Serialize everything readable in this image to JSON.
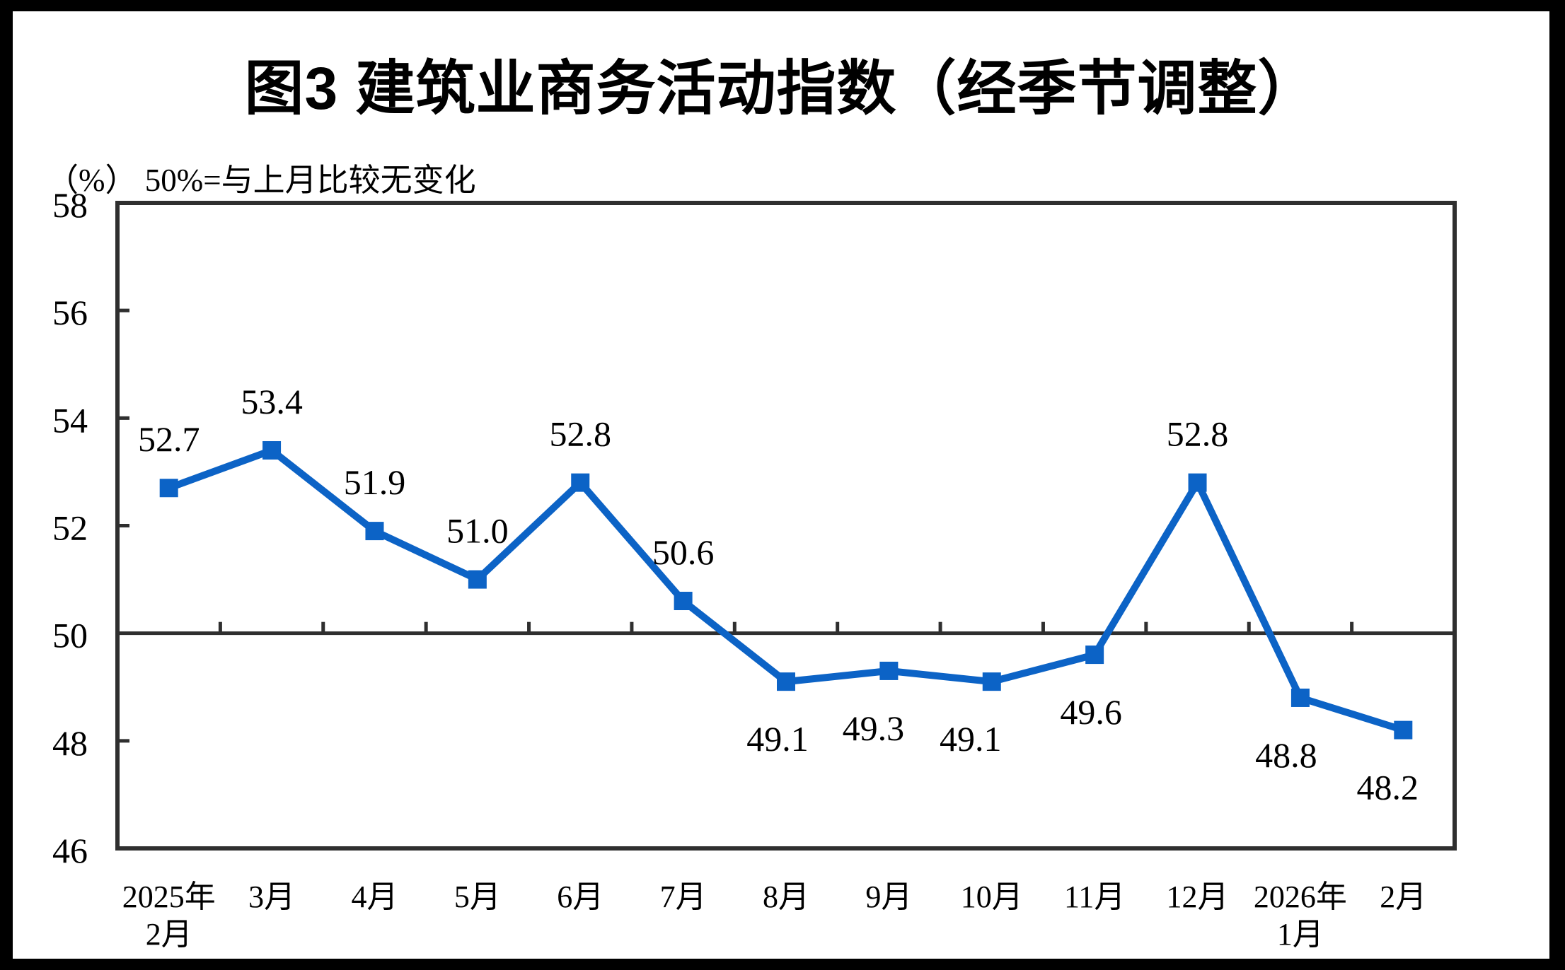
{
  "chart_data": {
    "type": "line",
    "title": "图3 建筑业商务活动指数（经季节调整）",
    "unit_note": "（%） 50%=与上月比较无变化",
    "categories": [
      [
        "2025年",
        "2月"
      ],
      [
        "3月"
      ],
      [
        "4月"
      ],
      [
        "5月"
      ],
      [
        "6月"
      ],
      [
        "7月"
      ],
      [
        "8月"
      ],
      [
        "9月"
      ],
      [
        "10月"
      ],
      [
        "11月"
      ],
      [
        "12月"
      ],
      [
        "2026年",
        "1月"
      ],
      [
        "2月"
      ]
    ],
    "values": [
      52.7,
      53.4,
      51.9,
      51.0,
      52.8,
      50.6,
      49.1,
      49.3,
      49.1,
      49.6,
      52.8,
      48.8,
      48.2
    ],
    "value_labels": [
      "52.7",
      "53.4",
      "51.9",
      "51.0",
      "52.8",
      "50.6",
      "49.1",
      "49.3",
      "49.1",
      "49.6",
      "52.8",
      "48.8",
      "48.2"
    ],
    "label_side": [
      "above",
      "above",
      "above",
      "above",
      "above",
      "above",
      "below",
      "below",
      "below",
      "below",
      "above",
      "below",
      "below"
    ],
    "label_dx": [
      0,
      0,
      0,
      0,
      0,
      0,
      -12,
      -22,
      -30,
      -5,
      0,
      -20,
      -22
    ],
    "ylim": [
      46,
      58
    ],
    "yticks": [
      58,
      56,
      54,
      52,
      50,
      48,
      46
    ],
    "reference_line": 50,
    "grid": "off",
    "legend": "none",
    "marker": "square",
    "colors": {
      "series": "#0C63C6",
      "axis": "#2F2F2F",
      "text": "#000000",
      "background": "#FFFFFF",
      "frame": "#000000"
    }
  }
}
